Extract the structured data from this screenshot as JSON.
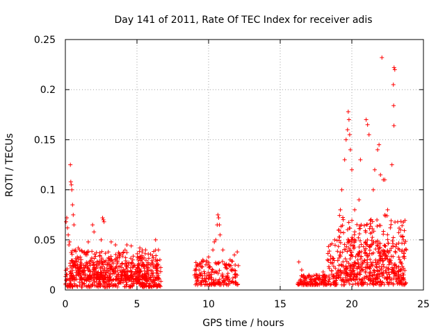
{
  "chart_data": {
    "type": "scatter",
    "title": "Day 141 of 2011, Rate Of TEC Index for receiver adis",
    "xlabel": "GPS time / hours",
    "ylabel": "ROTI / TECUs",
    "xlim": [
      0,
      25
    ],
    "ylim": [
      0,
      0.25
    ],
    "x_ticks": [
      0,
      5,
      10,
      15,
      20,
      25
    ],
    "x_tick_labels": [
      "0",
      "5",
      "10",
      "15",
      "20",
      "25"
    ],
    "y_ticks": [
      0,
      0.05,
      0.1,
      0.15,
      0.2,
      0.25
    ],
    "y_tick_labels": [
      "0",
      "0.05",
      "0.1",
      "0.15",
      "0.2",
      "0.25"
    ],
    "grid": true,
    "marker": "+",
    "series": [
      {
        "name": "ROTI",
        "color": "#ff0000",
        "points": [
          [
            0.05,
            0.068
          ],
          [
            0.1,
            0.072
          ],
          [
            0.15,
            0.062
          ],
          [
            0.2,
            0.055
          ],
          [
            0.25,
            0.045
          ],
          [
            0.3,
            0.048
          ],
          [
            0.35,
            0.125
          ],
          [
            0.38,
            0.108
          ],
          [
            0.42,
            0.105
          ],
          [
            0.45,
            0.1
          ],
          [
            0.5,
            0.085
          ],
          [
            0.55,
            0.075
          ],
          [
            0.6,
            0.065
          ],
          [
            0.7,
            0.04
          ],
          [
            0.9,
            0.042
          ],
          [
            1.0,
            0.04
          ],
          [
            1.5,
            0.035
          ],
          [
            1.6,
            0.048
          ],
          [
            1.9,
            0.065
          ],
          [
            2.0,
            0.058
          ],
          [
            2.5,
            0.05
          ],
          [
            2.6,
            0.072
          ],
          [
            2.65,
            0.07
          ],
          [
            2.7,
            0.068
          ],
          [
            3.0,
            0.038
          ],
          [
            3.2,
            0.048
          ],
          [
            3.5,
            0.045
          ],
          [
            4.3,
            0.045
          ],
          [
            4.6,
            0.044
          ],
          [
            5.2,
            0.042
          ],
          [
            5.6,
            0.04
          ],
          [
            6.3,
            0.05
          ],
          [
            6.5,
            0.04
          ],
          [
            6.6,
            0.03
          ],
          [
            9.2,
            0.025
          ],
          [
            9.6,
            0.03
          ],
          [
            10.0,
            0.033
          ],
          [
            10.3,
            0.04
          ],
          [
            10.4,
            0.048
          ],
          [
            10.5,
            0.05
          ],
          [
            10.6,
            0.065
          ],
          [
            10.65,
            0.075
          ],
          [
            10.7,
            0.072
          ],
          [
            10.75,
            0.065
          ],
          [
            10.8,
            0.055
          ],
          [
            11.0,
            0.04
          ],
          [
            11.5,
            0.03
          ],
          [
            11.8,
            0.035
          ],
          [
            12.0,
            0.038
          ],
          [
            16.3,
            0.028
          ],
          [
            16.5,
            0.02
          ],
          [
            17.0,
            0.015
          ],
          [
            17.5,
            0.015
          ],
          [
            18.0,
            0.018
          ],
          [
            18.3,
            0.03
          ],
          [
            18.5,
            0.045
          ],
          [
            18.8,
            0.05
          ],
          [
            19.1,
            0.06
          ],
          [
            19.2,
            0.08
          ],
          [
            19.3,
            0.1
          ],
          [
            19.5,
            0.13
          ],
          [
            19.6,
            0.15
          ],
          [
            19.7,
            0.16
          ],
          [
            19.75,
            0.178
          ],
          [
            19.8,
            0.17
          ],
          [
            19.85,
            0.155
          ],
          [
            19.9,
            0.14
          ],
          [
            20.0,
            0.12
          ],
          [
            20.2,
            0.08
          ],
          [
            20.5,
            0.09
          ],
          [
            20.6,
            0.13
          ],
          [
            21.0,
            0.17
          ],
          [
            21.1,
            0.165
          ],
          [
            21.2,
            0.155
          ],
          [
            21.5,
            0.1
          ],
          [
            21.6,
            0.12
          ],
          [
            21.8,
            0.14
          ],
          [
            21.9,
            0.145
          ],
          [
            22.0,
            0.115
          ],
          [
            22.1,
            0.232
          ],
          [
            22.2,
            0.11
          ],
          [
            22.3,
            0.11
          ],
          [
            22.5,
            0.08
          ],
          [
            22.8,
            0.125
          ],
          [
            22.9,
            0.205
          ],
          [
            22.95,
            0.222
          ],
          [
            23.0,
            0.22
          ],
          [
            22.92,
            0.184
          ],
          [
            22.94,
            0.164
          ],
          [
            23.2,
            0.068
          ],
          [
            23.4,
            0.06
          ],
          [
            23.6,
            0.05
          ],
          [
            23.8,
            0.04
          ]
        ],
        "bands": [
          {
            "x_start": 0.0,
            "x_end": 6.7,
            "low": 0.003,
            "high": 0.028
          },
          {
            "x_start": 0.3,
            "x_end": 6.5,
            "low": 0.01,
            "high": 0.04
          },
          {
            "x_start": 9.0,
            "x_end": 12.1,
            "low": 0.005,
            "high": 0.03
          },
          {
            "x_start": 16.2,
            "x_end": 18.3,
            "low": 0.005,
            "high": 0.015
          },
          {
            "x_start": 18.3,
            "x_end": 23.8,
            "low": 0.005,
            "high": 0.05
          },
          {
            "x_start": 19.0,
            "x_end": 23.8,
            "low": 0.01,
            "high": 0.075
          }
        ]
      }
    ]
  }
}
